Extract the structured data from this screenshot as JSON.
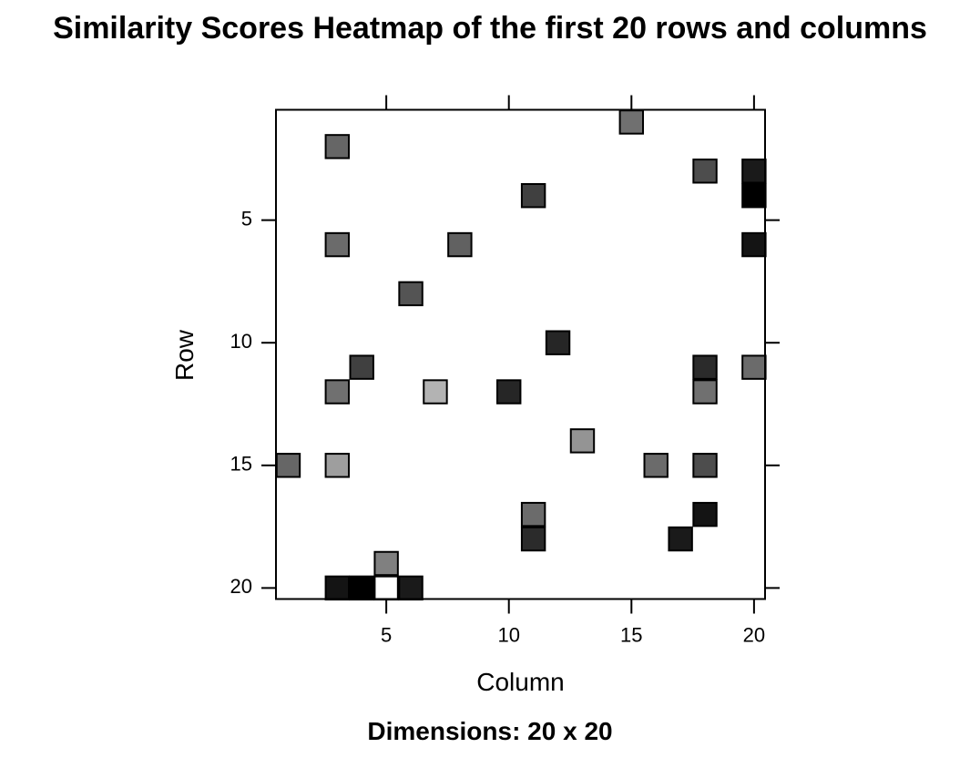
{
  "chart_data": {
    "type": "heatmap",
    "title": "Similarity Scores Heatmap of the first 20 rows and columns",
    "subtitle": "Dimensions: 20 x 20",
    "xlabel": "Column",
    "ylabel": "Row",
    "x_range": [
      1,
      20
    ],
    "y_range": [
      1,
      20
    ],
    "y_reversed": true,
    "x_ticks": [
      5,
      10,
      15,
      20
    ],
    "y_ticks": [
      5,
      10,
      15,
      20
    ],
    "colormap": "grayscale",
    "grid": false,
    "cells": [
      {
        "row": 1,
        "col": 15,
        "value": 0.44
      },
      {
        "row": 2,
        "col": 3,
        "value": 0.4
      },
      {
        "row": 3,
        "col": 18,
        "value": 0.3
      },
      {
        "row": 3,
        "col": 20,
        "value": 0.1
      },
      {
        "row": 4,
        "col": 11,
        "value": 0.25
      },
      {
        "row": 4,
        "col": 20,
        "value": 0.0
      },
      {
        "row": 6,
        "col": 3,
        "value": 0.42
      },
      {
        "row": 6,
        "col": 8,
        "value": 0.38
      },
      {
        "row": 6,
        "col": 20,
        "value": 0.08
      },
      {
        "row": 8,
        "col": 6,
        "value": 0.33
      },
      {
        "row": 10,
        "col": 12,
        "value": 0.15
      },
      {
        "row": 11,
        "col": 4,
        "value": 0.25
      },
      {
        "row": 11,
        "col": 18,
        "value": 0.17
      },
      {
        "row": 11,
        "col": 20,
        "value": 0.42
      },
      {
        "row": 12,
        "col": 3,
        "value": 0.44
      },
      {
        "row": 12,
        "col": 7,
        "value": 0.7
      },
      {
        "row": 12,
        "col": 10,
        "value": 0.15
      },
      {
        "row": 12,
        "col": 18,
        "value": 0.44
      },
      {
        "row": 14,
        "col": 13,
        "value": 0.58
      },
      {
        "row": 15,
        "col": 1,
        "value": 0.4
      },
      {
        "row": 15,
        "col": 3,
        "value": 0.62
      },
      {
        "row": 15,
        "col": 16,
        "value": 0.42
      },
      {
        "row": 15,
        "col": 18,
        "value": 0.3
      },
      {
        "row": 17,
        "col": 11,
        "value": 0.42
      },
      {
        "row": 17,
        "col": 18,
        "value": 0.08
      },
      {
        "row": 18,
        "col": 11,
        "value": 0.17
      },
      {
        "row": 18,
        "col": 17,
        "value": 0.1
      },
      {
        "row": 19,
        "col": 5,
        "value": 0.5
      },
      {
        "row": 20,
        "col": 3,
        "value": 0.08
      },
      {
        "row": 20,
        "col": 4,
        "value": 0.0
      },
      {
        "row": 20,
        "col": 5,
        "value": 1.0
      },
      {
        "row": 20,
        "col": 6,
        "value": 0.1
      }
    ]
  }
}
